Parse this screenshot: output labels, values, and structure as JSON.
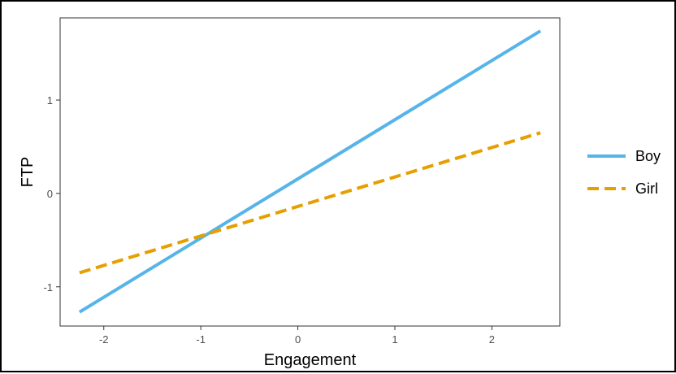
{
  "chart_data": {
    "type": "line",
    "title": "",
    "xlabel": "Engagement",
    "ylabel": "FTP",
    "xlim": [
      -2.45,
      2.7
    ],
    "ylim": [
      -1.42,
      1.88
    ],
    "x_ticks": [
      -2,
      -1,
      0,
      1,
      2
    ],
    "x_tick_labels": [
      "-2",
      "-1",
      "0",
      "1",
      "2"
    ],
    "y_ticks": [
      -1,
      0,
      1
    ],
    "y_tick_labels": [
      "-1",
      "0",
      "1"
    ],
    "grid": false,
    "legend_position": "right",
    "series": [
      {
        "name": "Boy",
        "color": "#56B4E9",
        "dash": "solid",
        "x": [
          -2.25,
          2.5
        ],
        "y": [
          -1.27,
          1.74
        ]
      },
      {
        "name": "Girl",
        "color": "#E69F00",
        "dash": "dashed",
        "x": [
          -2.25,
          2.5
        ],
        "y": [
          -0.85,
          0.65
        ]
      }
    ]
  }
}
